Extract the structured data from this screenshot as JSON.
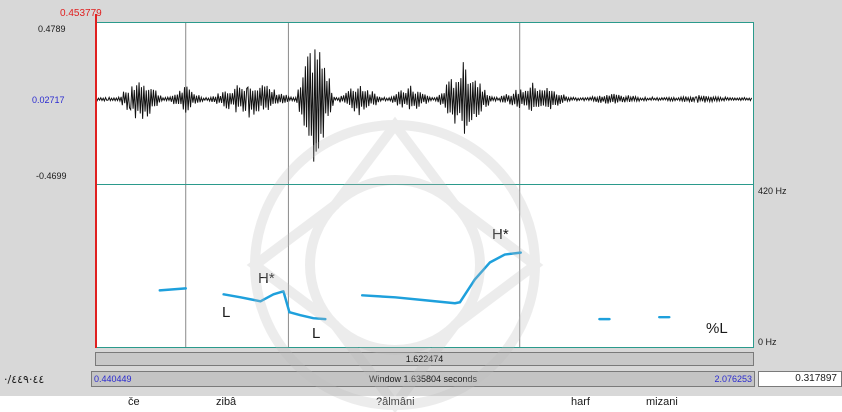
{
  "cursor_value": "0.453779",
  "waveform": {
    "y_max_label": "0.4789",
    "y_zero_label": "0.02717",
    "y_min_label": "-0.4699"
  },
  "pitch": {
    "y_max_label": "420 Hz",
    "y_min_label": "0 Hz",
    "tones": [
      "H*",
      "L",
      "L",
      "H*",
      "%L"
    ]
  },
  "duration_label": "1.622474",
  "window": {
    "start_time": "0.440449",
    "label": "Window 1.635804 seconds",
    "end_time": "2.076253"
  },
  "right_value": "0.317897",
  "left_code": "·/٤٤·٤٤٩",
  "words": [
    "če",
    "zibâ",
    "?âlmâni",
    "harf",
    "mizani"
  ],
  "colors": {
    "pitch_line": "#1ea0dc",
    "panel_border": "#2b9a8c",
    "cursor": "#e02020",
    "time_values": "#2a2ad0"
  }
}
